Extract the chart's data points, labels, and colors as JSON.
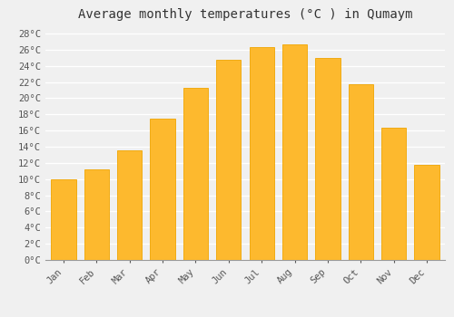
{
  "title": "Average monthly temperatures (°C ) in Qumaym",
  "months": [
    "Jan",
    "Feb",
    "Mar",
    "Apr",
    "May",
    "Jun",
    "Jul",
    "Aug",
    "Sep",
    "Oct",
    "Nov",
    "Dec"
  ],
  "temperatures": [
    10.0,
    11.2,
    13.5,
    17.5,
    21.3,
    24.8,
    26.3,
    26.6,
    25.0,
    21.7,
    16.4,
    11.8
  ],
  "bar_color_face": "#FDB92E",
  "bar_color_edge": "#F0A500",
  "ylim": [
    0,
    29
  ],
  "ytick_step": 2,
  "background_color": "#f0f0f0",
  "grid_color": "#ffffff",
  "title_fontsize": 10,
  "tick_fontsize": 7.5,
  "font_family": "monospace"
}
